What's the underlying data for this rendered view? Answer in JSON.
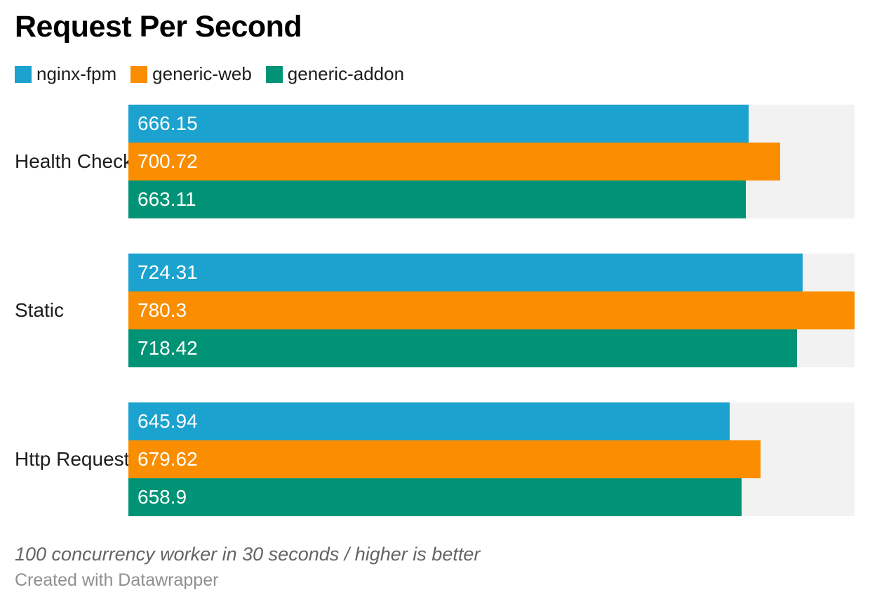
{
  "chart_data": {
    "type": "bar",
    "orientation": "horizontal",
    "title": "Request Per Second",
    "categories": [
      "Health Check",
      "Static",
      "Http Request"
    ],
    "series": [
      {
        "name": "nginx-fpm",
        "color": "#1CA2CE",
        "values": [
          666.15,
          724.31,
          645.94
        ]
      },
      {
        "name": "generic-web",
        "color": "#FA8D00",
        "values": [
          700.72,
          780.3,
          679.62
        ]
      },
      {
        "name": "generic-addon",
        "color": "#009375",
        "values": [
          663.11,
          718.42,
          658.9
        ]
      }
    ],
    "value_labels": [
      [
        "666.15",
        "700.72",
        "663.11"
      ],
      [
        "724.31",
        "780.3",
        "718.42"
      ],
      [
        "645.94",
        "679.62",
        "658.9"
      ]
    ],
    "xlim": [
      0,
      780.3
    ],
    "grid": false,
    "legend_position": "top",
    "track_color": "#F2F2F2",
    "label_text_color": "#ffffff",
    "note": "100 concurrency worker in 30 seconds / higher is better",
    "credit": "Created with Datawrapper"
  }
}
